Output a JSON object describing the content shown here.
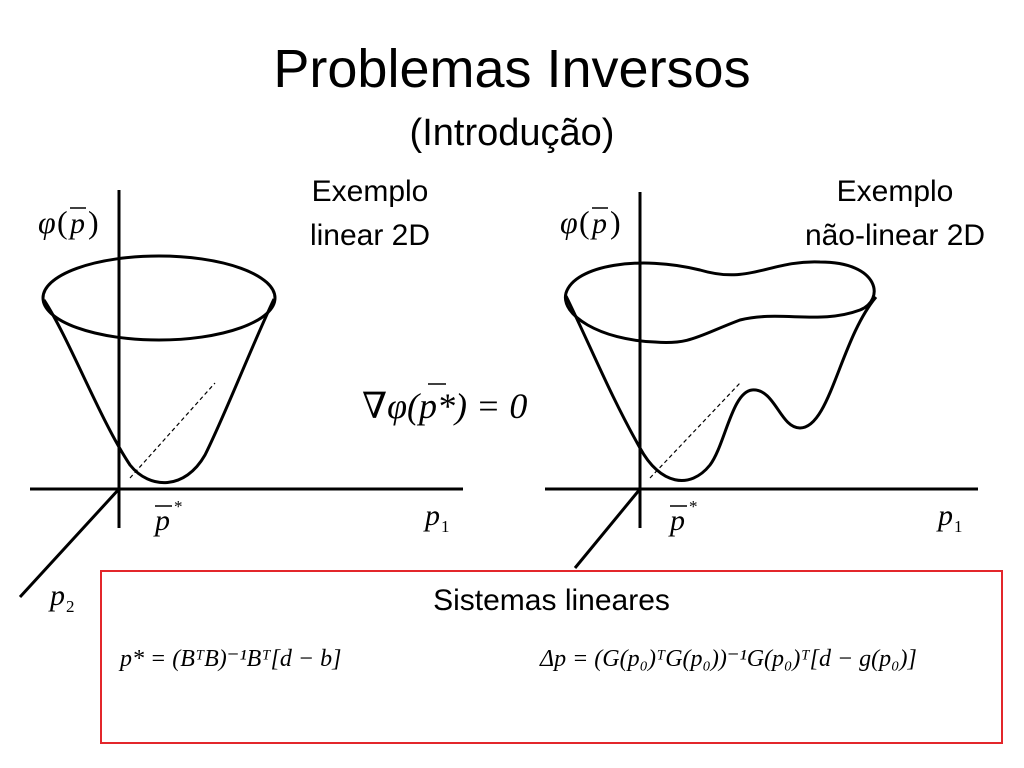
{
  "title": "Problemas Inversos",
  "subtitle": "(Introdução)",
  "left_example": {
    "line1": "Exemplo",
    "line2": "linear 2D"
  },
  "right_example": {
    "line1": "Exemplo",
    "line2": "não-linear 2D"
  },
  "labels": {
    "phi": "φ",
    "phi_arg": "p",
    "p": "p",
    "star": "*",
    "p1_sub": "1",
    "p2_sub": "2",
    "condition": "∇φ(p*) = 0"
  },
  "box": {
    "title": "Sistemas lineares",
    "formula_left": "p* = (BᵀB)⁻¹Bᵀ[d − b]",
    "formula_right": "Δp = (G(p₀)ᵀG(p₀))⁻¹G(p₀)ᵀ[d − g(p₀)]"
  },
  "colors": {
    "box_border": "#e3262b"
  }
}
